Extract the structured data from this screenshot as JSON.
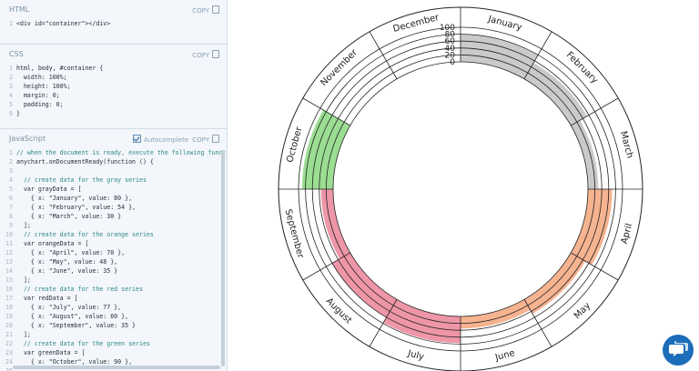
{
  "html_panel": {
    "title": "HTML",
    "copy_label": "COPY",
    "lines": [
      "<div id=\"container\"></div>"
    ]
  },
  "css_panel": {
    "title": "CSS",
    "copy_label": "COPY",
    "lines": [
      "html, body, #container {",
      "  width: 100%;",
      "  height: 100%;",
      "  margin: 0;",
      "  padding: 0;",
      "}"
    ]
  },
  "js_panel": {
    "title": "JavaScript",
    "autocomplete_label": "Autocomplete",
    "copy_label": "COPY",
    "lines": [
      "// when the document is ready, execute the following function",
      "anychart.onDocumentReady(function () {",
      "",
      "  // create data for the gray series",
      "  var grayData = [",
      "    { x: \"January\", value: 80 },",
      "    { x: \"February\", value: 54 },",
      "    { x: \"March\", value: 30 }",
      "  ];",
      "  // create data for the orange series",
      "  var orangeData = [",
      "    { x: \"April\", value: 70 },",
      "    { x: \"May\", value: 48 },",
      "    { x: \"June\", value: 35 }",
      "  ];",
      "  // create data for the red series",
      "  var redData = [",
      "    { x: \"July\", value: 77 },",
      "    { x: \"August\", value: 60 },",
      "    { x: \"September\", value: 35 }",
      "  ];",
      "  // create data for the green series",
      "  var greenData = [",
      "    { x: \"October\", value: 90 },",
      "    "
    ]
  },
  "chart_data": {
    "type": "polar",
    "categories": [
      "January",
      "February",
      "March",
      "April",
      "May",
      "June",
      "July",
      "August",
      "September",
      "October",
      "November",
      "December"
    ],
    "ylim": [
      0,
      100
    ],
    "radial_ticks": [
      "0",
      "20",
      "40",
      "60",
      "80",
      "100"
    ],
    "series": [
      {
        "values": [
          80,
          54,
          30,
          null,
          null,
          null,
          null,
          null,
          null,
          null,
          null,
          null
        ],
        "color": "#b8b8b8"
      },
      {
        "values": [
          null,
          null,
          null,
          70,
          48,
          35,
          null,
          null,
          null,
          null,
          null,
          null
        ],
        "color": "#f39a6b"
      },
      {
        "values": [
          null,
          null,
          null,
          null,
          null,
          null,
          77,
          60,
          35,
          null,
          null,
          null
        ],
        "color": "#e8738a"
      },
      {
        "values": [
          null,
          null,
          null,
          null,
          null,
          null,
          null,
          null,
          null,
          90,
          null,
          null
        ],
        "color": "#7ad36e"
      }
    ]
  },
  "colors": {
    "chat_button": "#1c6dba",
    "panel_bg": "#f3f6fa",
    "accent_text": "#2e7d9a"
  }
}
